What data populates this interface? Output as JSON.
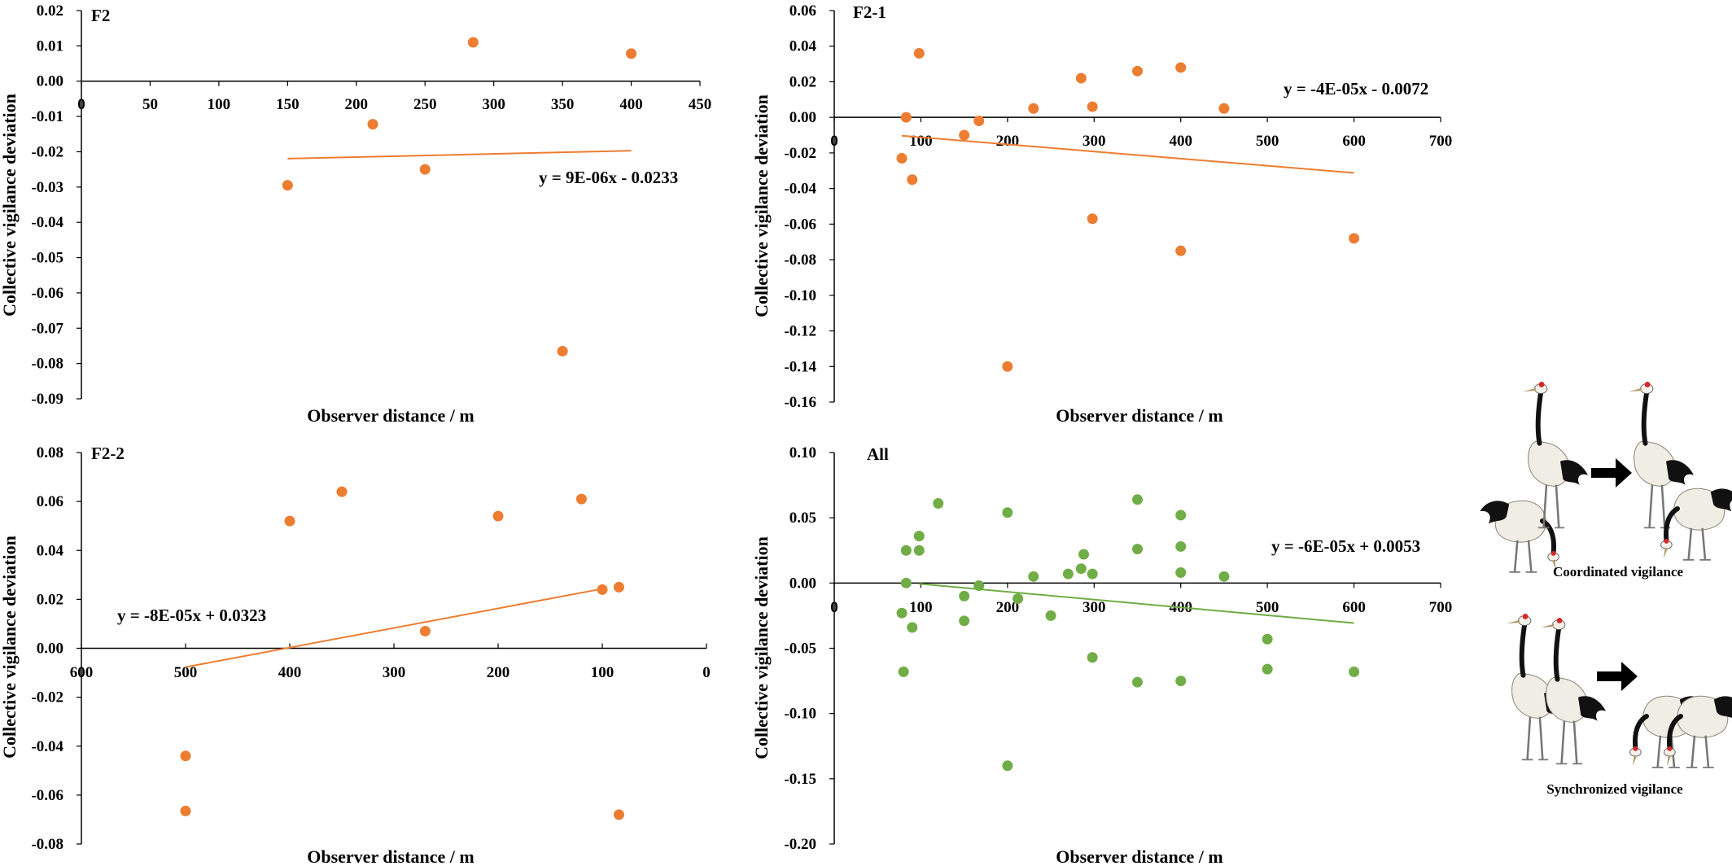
{
  "colors": {
    "orange": "#ED7D31",
    "green": "#70AD47",
    "axis": "#000000"
  },
  "chart_data": [
    {
      "type": "scatter",
      "label": "F2",
      "xlabel": "Observer distance / m",
      "ylabel": "Collective vigilance deviation",
      "xlim": [
        0,
        450
      ],
      "ylim": [
        -0.09,
        0.02
      ],
      "x_ticks": [
        "0",
        "50",
        "100",
        "150",
        "200",
        "250",
        "300",
        "350",
        "400",
        "450"
      ],
      "y_ticks": [
        "0.02",
        "0.01",
        "0.00",
        "-0.01",
        "-0.02",
        "-0.03",
        "-0.04",
        "-0.05",
        "-0.06",
        "-0.07",
        "-0.08",
        "-0.09"
      ],
      "points": [
        [
          150,
          -0.0295
        ],
        [
          212,
          -0.0122
        ],
        [
          250,
          -0.025
        ],
        [
          285,
          0.011
        ],
        [
          350,
          -0.0765
        ],
        [
          400,
          0.0078
        ]
      ],
      "trendline": {
        "equation": "y = 9E-06x - 0.0233",
        "slope": 9e-06,
        "intercept": -0.0233,
        "x_range": [
          150,
          400
        ]
      },
      "color": "#ED7D31"
    },
    {
      "type": "scatter",
      "label": "F2-1",
      "xlabel": "Observer distance / m",
      "ylabel": "Collective vigilance deviation",
      "xlim": [
        0,
        700
      ],
      "ylim": [
        -0.16,
        0.06
      ],
      "x_ticks": [
        "0",
        "100",
        "200",
        "300",
        "400",
        "500",
        "600",
        "700"
      ],
      "y_ticks": [
        "0.06",
        "0.04",
        "0.02",
        "0.00",
        "-0.02",
        "-0.04",
        "-0.06",
        "-0.08",
        "-0.10",
        "-0.12",
        "-0.14",
        "-0.16"
      ],
      "points": [
        [
          78,
          -0.023
        ],
        [
          83,
          0.0
        ],
        [
          90,
          -0.035
        ],
        [
          98,
          0.036
        ],
        [
          150,
          -0.01
        ],
        [
          167,
          -0.002
        ],
        [
          200,
          -0.14
        ],
        [
          230,
          0.005
        ],
        [
          285,
          0.022
        ],
        [
          298,
          0.006
        ],
        [
          298,
          -0.057
        ],
        [
          350,
          0.026
        ],
        [
          400,
          0.028
        ],
        [
          400,
          -0.075
        ],
        [
          450,
          0.005
        ],
        [
          600,
          -0.068
        ]
      ],
      "trendline": {
        "equation": "y = -4E-05x - 0.0072",
        "slope": -4e-05,
        "intercept": -0.0072,
        "x_range": [
          78,
          600
        ]
      },
      "color": "#ED7D31"
    },
    {
      "type": "scatter",
      "label": "F2-2",
      "xlabel": "Observer distance / m",
      "ylabel": "Collective vigilance deviation",
      "xlim": [
        0,
        600
      ],
      "x_reversed": true,
      "ylim": [
        -0.08,
        0.08
      ],
      "x_ticks": [
        "600",
        "500",
        "400",
        "300",
        "200",
        "100",
        "0"
      ],
      "y_ticks": [
        "0.08",
        "0.06",
        "0.04",
        "0.02",
        "0.00",
        "-0.02",
        "-0.04",
        "-0.06",
        "-0.08"
      ],
      "points": [
        [
          500,
          -0.044
        ],
        [
          500,
          -0.0665
        ],
        [
          400,
          0.052
        ],
        [
          350,
          0.064
        ],
        [
          270,
          0.007
        ],
        [
          200,
          0.054
        ],
        [
          120,
          0.061
        ],
        [
          100,
          0.024
        ],
        [
          84,
          0.025
        ],
        [
          84,
          -0.068
        ]
      ],
      "trendline": {
        "equation": "y = -8E-05x + 0.0323",
        "slope": -8e-05,
        "intercept": 0.0323,
        "x_range": [
          100,
          500
        ]
      },
      "color": "#ED7D31"
    },
    {
      "type": "scatter",
      "label": "All",
      "xlabel": "Observer distance / m",
      "ylabel": "Collective vigilance deviation",
      "xlim": [
        0,
        700
      ],
      "ylim": [
        -0.2,
        0.1
      ],
      "x_ticks": [
        "0",
        "100",
        "200",
        "300",
        "400",
        "500",
        "600",
        "700"
      ],
      "y_ticks": [
        "0.10",
        "0.05",
        "0.00",
        "-0.05",
        "-0.10",
        "-0.15",
        "-0.20"
      ],
      "points": [
        [
          78,
          -0.023
        ],
        [
          80,
          -0.068
        ],
        [
          83,
          0.025
        ],
        [
          83,
          0.0
        ],
        [
          90,
          -0.034
        ],
        [
          98,
          0.036
        ],
        [
          98,
          0.025
        ],
        [
          120,
          0.061
        ],
        [
          150,
          -0.01
        ],
        [
          150,
          -0.029
        ],
        [
          167,
          -0.002
        ],
        [
          200,
          0.054
        ],
        [
          200,
          -0.14
        ],
        [
          212,
          -0.012
        ],
        [
          230,
          0.005
        ],
        [
          250,
          -0.025
        ],
        [
          270,
          0.007
        ],
        [
          285,
          0.011
        ],
        [
          288,
          0.022
        ],
        [
          298,
          0.007
        ],
        [
          298,
          -0.057
        ],
        [
          350,
          0.064
        ],
        [
          350,
          0.026
        ],
        [
          350,
          -0.076
        ],
        [
          400,
          0.052
        ],
        [
          400,
          0.028
        ],
        [
          400,
          0.008
        ],
        [
          400,
          -0.075
        ],
        [
          450,
          0.005
        ],
        [
          500,
          -0.043
        ],
        [
          500,
          -0.066
        ],
        [
          600,
          -0.068
        ]
      ],
      "trendline": {
        "equation": "y = -6E-05x + 0.0053",
        "slope": -6e-05,
        "intercept": 0.0053,
        "x_range": [
          98,
          600
        ]
      },
      "color": "#70AD47"
    }
  ],
  "illustration": {
    "coordinated_label": "Coordinated vigilance",
    "synchronized_label": "Synchronized vigilance"
  }
}
